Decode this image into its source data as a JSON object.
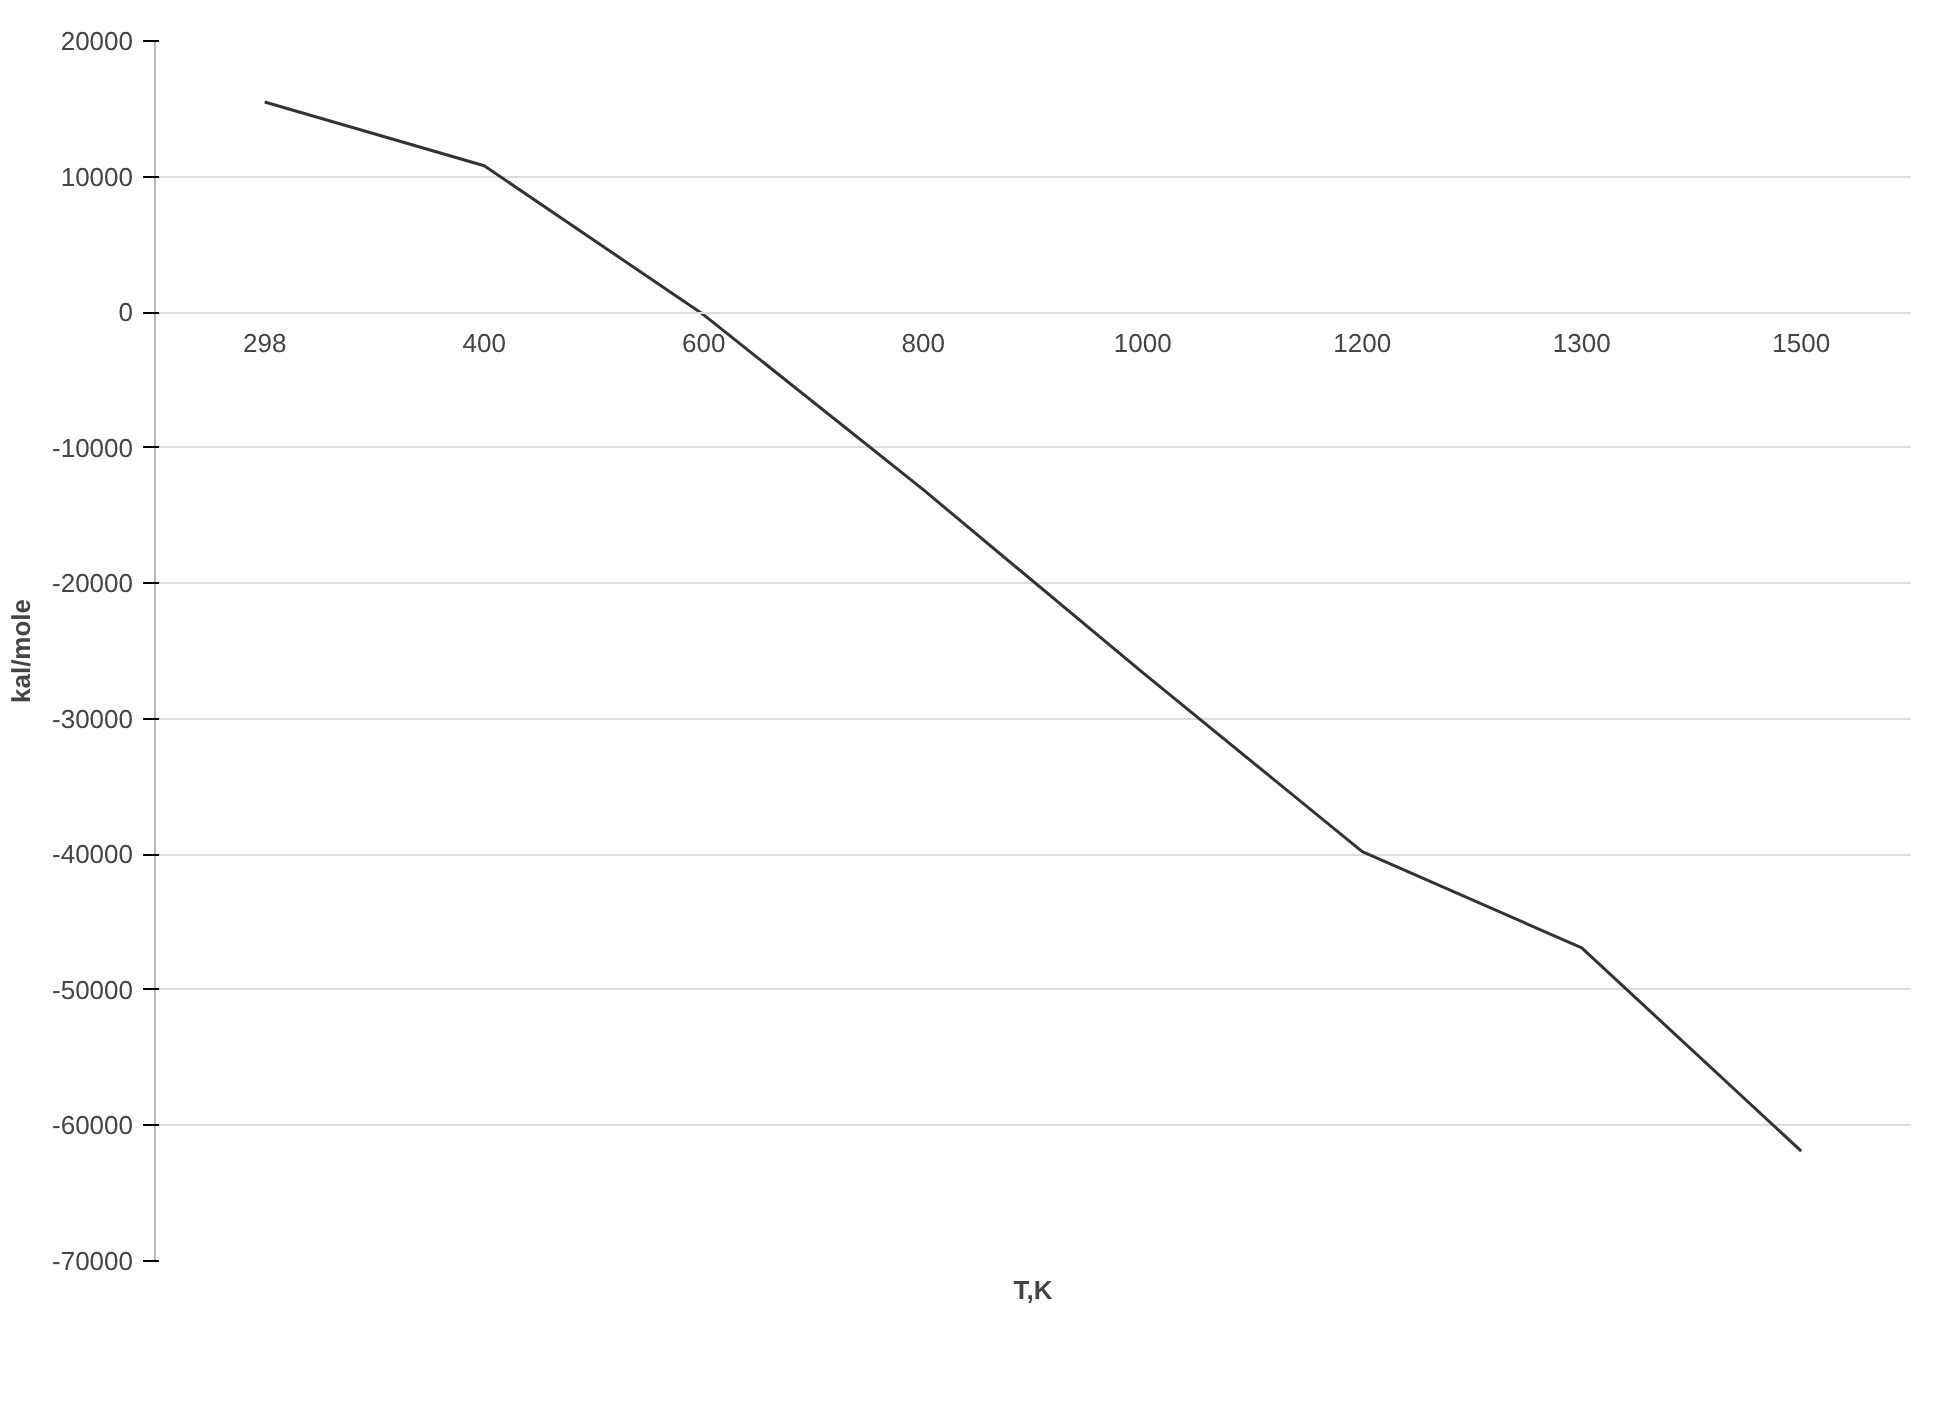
{
  "chart_data": {
    "type": "line",
    "xlabel": "T,K",
    "ylabel": "kal/mole",
    "categories": [
      "298",
      "400",
      "600",
      "800",
      "1000",
      "1200",
      "1300",
      "1500"
    ],
    "series": [
      {
        "color": "#333333",
        "values": [
          15500,
          10800,
          -200,
          -13100,
          -26600,
          -39800,
          -46900,
          -61900
        ]
      }
    ],
    "ylim": [
      -70000,
      20000
    ],
    "yticks": [
      -70000,
      -60000,
      -50000,
      -40000,
      -30000,
      -20000,
      -10000,
      0,
      10000,
      20000
    ],
    "grid": "y",
    "marker": "none",
    "line_style": "solid"
  }
}
